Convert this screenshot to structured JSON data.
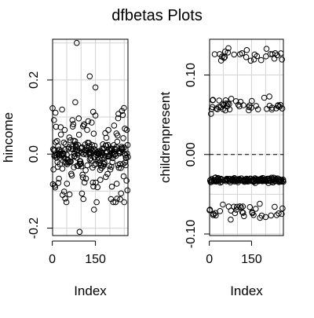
{
  "title": "dfbetas Plots",
  "chart_data": [
    {
      "type": "scatter",
      "xlabel": "Index",
      "ylabel": "hincome",
      "xlim": [
        1,
        263
      ],
      "ylim": [
        -0.22,
        0.31
      ],
      "xticks": [
        0,
        150
      ],
      "xtick_labels": [
        "0",
        "150"
      ],
      "yticks": [
        -0.2,
        0.0,
        0.2
      ],
      "ytick_labels": [
        "-0.2",
        "0.0",
        "0.2"
      ],
      "grid": true,
      "n": 263,
      "y_range": [
        -0.21,
        0.3
      ],
      "extreme_points": [
        {
          "x": 85,
          "y": 0.3
        },
        {
          "x": 95,
          "y": -0.21
        },
        {
          "x": 130,
          "y": 0.21
        },
        {
          "x": 150,
          "y": 0.18
        },
        {
          "x": 145,
          "y": -0.15
        },
        {
          "x": 45,
          "y": -0.12
        },
        {
          "x": 10,
          "y": -0.09
        },
        {
          "x": 250,
          "y": -0.13
        }
      ]
    },
    {
      "type": "scatter",
      "xlabel": "Index",
      "ylabel": "childrenpresent",
      "xlim": [
        1,
        263
      ],
      "ylim": [
        -0.102,
        0.145
      ],
      "xticks": [
        0,
        150
      ],
      "xtick_labels": [
        "0",
        "150"
      ],
      "yticks": [
        -0.1,
        0.0,
        0.1
      ],
      "ytick_labels": [
        "-0.10",
        "0.00",
        "0.10"
      ],
      "grid": true,
      "reference_line": {
        "y": 0,
        "style": "dashed"
      },
      "n": 263,
      "y_range": [
        -0.09,
        0.14
      ],
      "clusters": [
        {
          "name": "high",
          "y_range": [
            0.11,
            0.14
          ]
        },
        {
          "name": "upper-mid",
          "y_range": [
            0.045,
            0.09
          ]
        },
        {
          "name": "main",
          "y_range": [
            -0.038,
            -0.027
          ]
        },
        {
          "name": "low",
          "y_range": [
            -0.09,
            -0.055
          ]
        }
      ]
    }
  ]
}
